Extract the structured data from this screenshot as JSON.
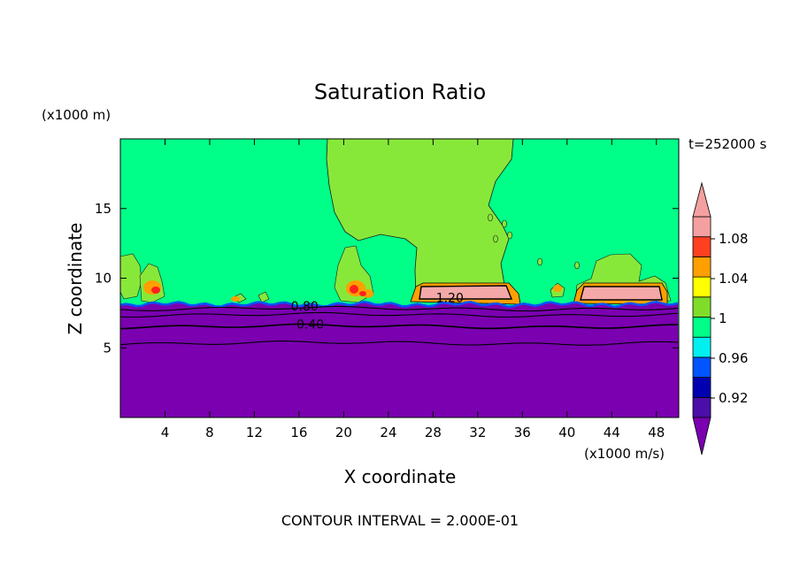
{
  "chart_data": {
    "type": "heatmap",
    "title": "Saturation Ratio",
    "xlabel": "X coordinate",
    "ylabel": "Z coordinate",
    "x_unit": "(x1000 m/s)",
    "y_unit": "(x1000 m)",
    "time_label": "t=252000 s",
    "footer": "CONTOUR INTERVAL = 2.000E-01",
    "xlim": [
      0,
      50
    ],
    "ylim": [
      0,
      20
    ],
    "x_ticks": [
      4,
      8,
      12,
      16,
      20,
      24,
      28,
      32,
      36,
      40,
      44,
      48
    ],
    "x_tick_labels": [
      "4",
      "8",
      "12",
      "16",
      "20",
      "24",
      "28",
      "32",
      "36",
      "40",
      "44",
      "48"
    ],
    "y_ticks": [
      5,
      10,
      15
    ],
    "y_tick_labels": [
      "5",
      "10",
      "15"
    ],
    "contour_labels": [
      {
        "text": "0.80",
        "x": 16.5,
        "z": 8.0
      },
      {
        "text": "0.40",
        "x": 17.0,
        "z": 6.7
      },
      {
        "text": "1.20",
        "x": 29.5,
        "z": 8.6
      }
    ],
    "colorbar": {
      "levels": [
        0.92,
        0.96,
        1,
        1.04,
        1.08
      ],
      "labels": [
        "0.92",
        "0.96",
        "1",
        "1.04",
        "1.08"
      ],
      "band_colors": [
        "#4a0fa8",
        "#0000b0",
        "#0055ff",
        "#00f0f0",
        "#00ff88",
        "#7fdd2a",
        "#ffff00",
        "#ffa000",
        "#ff4020",
        "#f5a0a0"
      ],
      "under_color": "#7a00b0",
      "over_color": "#f5a0a0"
    },
    "colors": {
      "background_field": "#00ff88",
      "saturated": "#88e83a",
      "dry_layer": "#7a00b0",
      "cloud_core": "#f5a8a8",
      "orange": "#ffa000",
      "red": "#ff2020"
    }
  }
}
